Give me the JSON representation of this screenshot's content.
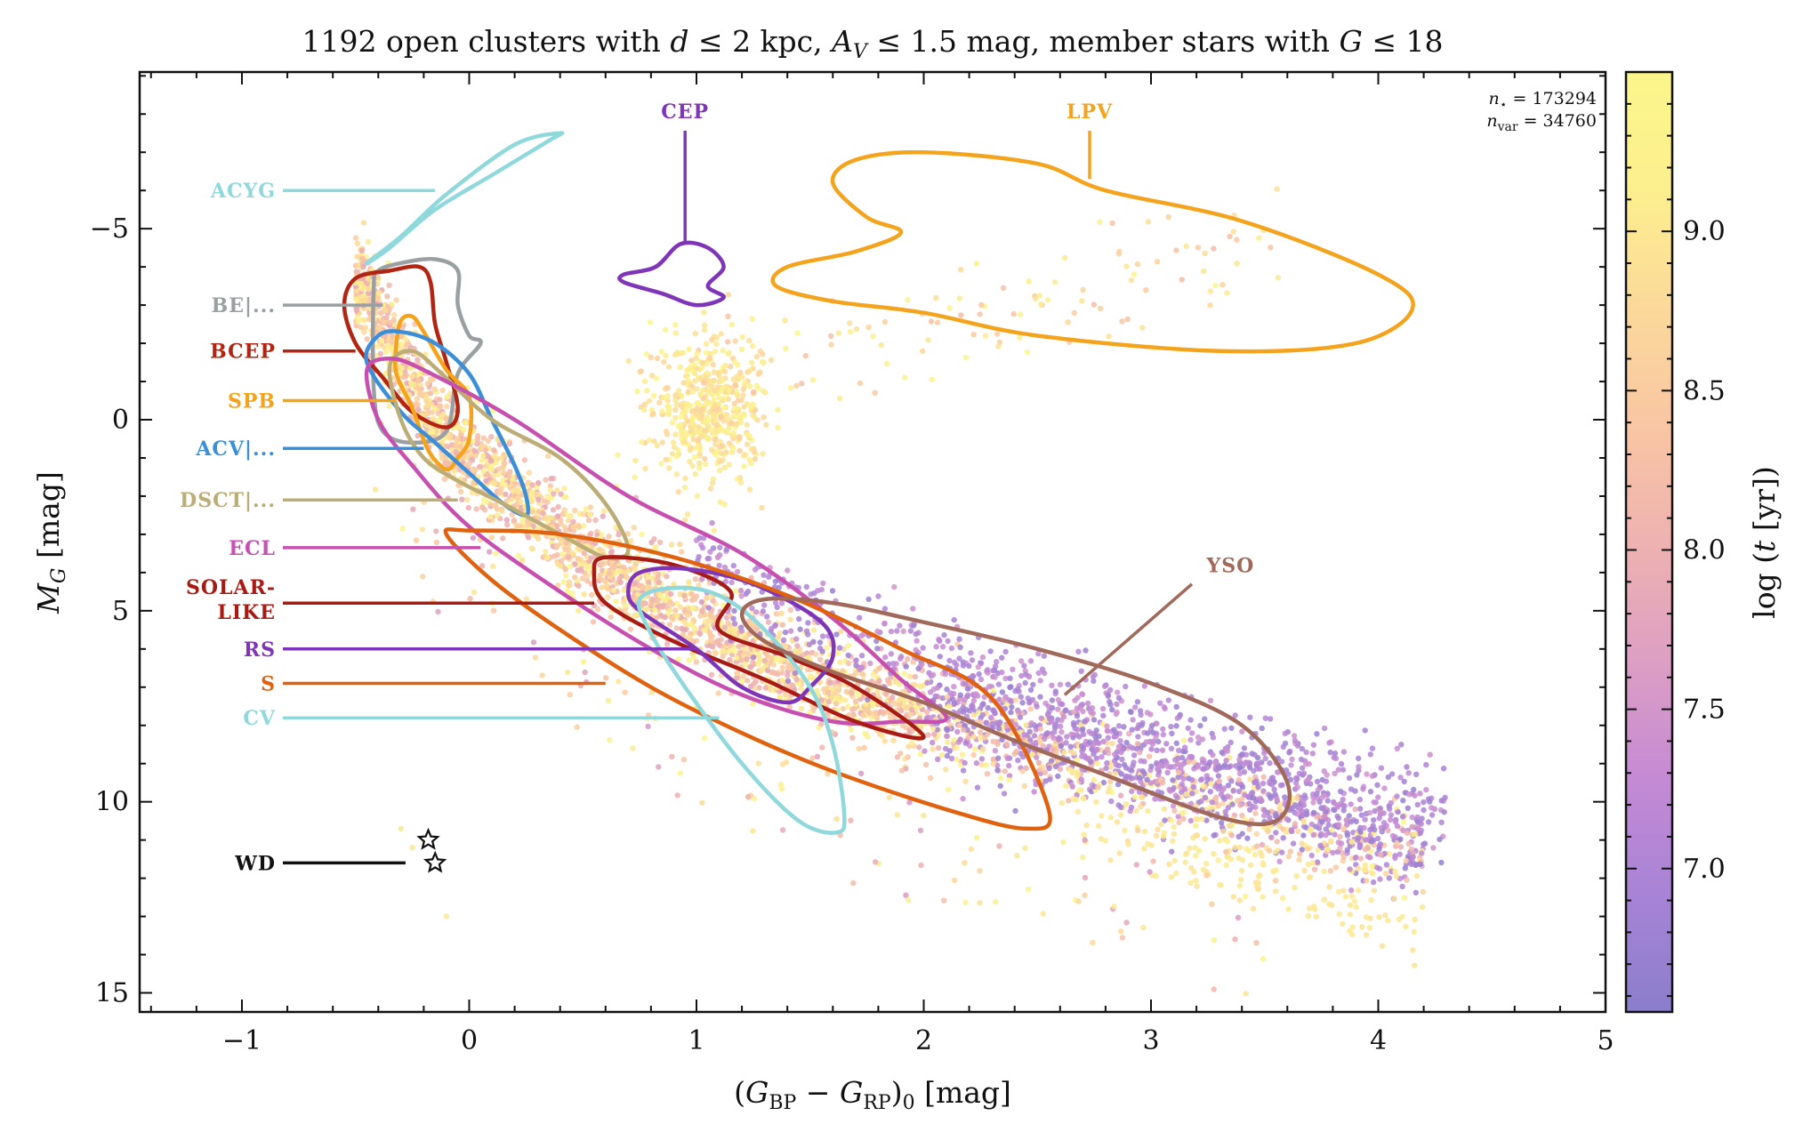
{
  "chart_data": {
    "type": "scatter",
    "title": "1192 open clusters with d ≤ 2 kpc, A_V ≤ 1.5 mag, member stars with G ≤ 18",
    "title_parts": {
      "lead": "1192 open clusters with ",
      "d_sym": "d",
      "d_rest": " ≤ 2 kpc, ",
      "av_sym": "A",
      "av_sub": "V",
      "av_rest": " ≤ 1.5 mag, member stars with ",
      "g_sym": "G",
      "g_rest": " ≤ 18"
    },
    "xlabel": "(G_BP − G_RP)_0 [mag]",
    "xlabel_parts": {
      "open": "(",
      "g1": "G",
      "s1": "BP",
      "minus": " − ",
      "g2": "G",
      "s2": "RP",
      "close": ")",
      "s3": "0",
      "unit": " [mag]"
    },
    "ylabel": "M_G [mag]",
    "ylabel_parts": {
      "m": "M",
      "s": "G",
      "unit": " [mag]"
    },
    "xlim": [
      -1.45,
      5.0
    ],
    "ylim": [
      15.5,
      -9.1
    ],
    "y_inverted": true,
    "xticks": [
      "−1",
      "0",
      "1",
      "2",
      "3",
      "4",
      "5"
    ],
    "xtick_values": [
      -1,
      0,
      1,
      2,
      3,
      4,
      5
    ],
    "yticks": [
      "−5",
      "0",
      "5",
      "10",
      "15"
    ],
    "ytick_values": [
      -5,
      0,
      5,
      10,
      15
    ],
    "colorbar": {
      "label": "log (t [yr])",
      "label_parts": {
        "log": "log",
        "open": " (",
        "t": "t",
        "rest": " [yr])"
      },
      "range": [
        6.55,
        9.5
      ],
      "ticks": [
        "7.0",
        "7.5",
        "8.0",
        "8.5",
        "9.0"
      ],
      "tick_values": [
        7.0,
        7.5,
        8.0,
        8.5,
        9.0
      ],
      "colors": [
        "#8a7ecb",
        "#a883d6",
        "#c58ad4",
        "#dd9fc3",
        "#eeb2b0",
        "#f9c6a3",
        "#fbd99a",
        "#fcef8e",
        "#fbf68b"
      ]
    },
    "counts": {
      "n_star": "n⋆ = 173294",
      "n_var": "nvar = 34760",
      "n_star_parts": {
        "n": "n",
        "sub": "⋆",
        "eq": " = 173294"
      },
      "n_var_parts": {
        "n": "n",
        "sub": "var",
        "eq": " = 34760"
      }
    },
    "sequences": {
      "main_sequence": [
        [
          -0.45,
          -3.5
        ],
        [
          -0.3,
          -1.5
        ],
        [
          -0.1,
          0.5
        ],
        [
          0.2,
          2.0
        ],
        [
          0.5,
          3.5
        ],
        [
          0.8,
          4.6
        ],
        [
          1.1,
          5.6
        ],
        [
          1.4,
          6.5
        ],
        [
          1.7,
          7.2
        ],
        [
          2.0,
          7.8
        ],
        [
          2.3,
          8.3
        ],
        [
          2.6,
          8.8
        ],
        [
          2.9,
          9.3
        ],
        [
          3.2,
          9.8
        ],
        [
          3.5,
          10.3
        ],
        [
          3.8,
          10.9
        ],
        [
          4.1,
          11.5
        ]
      ],
      "red_clump": [
        [
          0.95,
          -0.1
        ],
        [
          1.05,
          -0.5
        ],
        [
          1.15,
          0.3
        ],
        [
          1.2,
          -1.2
        ],
        [
          1.0,
          -2.0
        ]
      ],
      "giant_branch": [
        [
          1.1,
          -1.0
        ],
        [
          1.5,
          -2.5
        ],
        [
          2.0,
          -3.5
        ],
        [
          2.6,
          -4.5
        ],
        [
          3.3,
          -5.0
        ]
      ],
      "white_dwarfs": [
        [
          -0.2,
          11.0
        ],
        [
          -0.15,
          11.7
        ],
        [
          -0.3,
          10.7
        ],
        [
          -0.25,
          11.2
        ],
        [
          -0.1,
          13.0
        ]
      ]
    },
    "series": [
      {
        "name": "ACYG",
        "color": "#8fd9dc",
        "contour": [
          [
            -0.45,
            -4.1
          ],
          [
            -0.3,
            -4.8
          ],
          [
            -0.1,
            -5.9
          ],
          [
            0.2,
            -7.2
          ],
          [
            0.4,
            -7.5
          ],
          [
            0.35,
            -7.3
          ],
          [
            0.1,
            -6.4
          ],
          [
            -0.15,
            -5.5
          ],
          [
            -0.35,
            -4.5
          ],
          [
            -0.45,
            -4.1
          ]
        ],
        "anchor": [
          -0.15,
          -6.0
        ]
      },
      {
        "name": "BE|...",
        "color": "#9aa0a2",
        "contour": [
          [
            -0.42,
            -3.5
          ],
          [
            -0.4,
            -3.9
          ],
          [
            -0.3,
            -4.1
          ],
          [
            -0.15,
            -4.2
          ],
          [
            -0.05,
            -3.9
          ],
          [
            -0.05,
            -3.0
          ],
          [
            0.0,
            -2.2
          ],
          [
            0.05,
            -2.0
          ],
          [
            -0.05,
            -1.2
          ],
          [
            -0.1,
            0.3
          ],
          [
            -0.25,
            0.6
          ],
          [
            -0.38,
            0.3
          ],
          [
            -0.42,
            -0.8
          ],
          [
            -0.42,
            -3.5
          ]
        ],
        "anchor": [
          -0.38,
          -3.0
        ]
      },
      {
        "name": "BCEP",
        "color": "#b22512",
        "contour": [
          [
            -0.55,
            -3.0
          ],
          [
            -0.5,
            -3.7
          ],
          [
            -0.35,
            -3.9
          ],
          [
            -0.22,
            -4.0
          ],
          [
            -0.17,
            -3.6
          ],
          [
            -0.15,
            -2.5
          ],
          [
            -0.1,
            -1.5
          ],
          [
            -0.05,
            -0.3
          ],
          [
            -0.1,
            0.2
          ],
          [
            -0.25,
            -0.2
          ],
          [
            -0.38,
            -1.1
          ],
          [
            -0.5,
            -2.0
          ],
          [
            -0.55,
            -3.0
          ]
        ],
        "anchor": [
          -0.5,
          -1.8
        ]
      },
      {
        "name": "SPB",
        "color": "#f4a31c",
        "contour": [
          [
            -0.32,
            -2.0
          ],
          [
            -0.3,
            -2.6
          ],
          [
            -0.25,
            -2.7
          ],
          [
            -0.2,
            -2.3
          ],
          [
            -0.1,
            -1.3
          ],
          [
            0.0,
            -0.6
          ],
          [
            0.0,
            0.5
          ],
          [
            -0.05,
            1.0
          ],
          [
            -0.1,
            1.3
          ],
          [
            -0.18,
            0.8
          ],
          [
            -0.25,
            -0.3
          ],
          [
            -0.32,
            -1.2
          ],
          [
            -0.32,
            -2.0
          ]
        ],
        "anchor": [
          -0.32,
          -0.5
        ]
      },
      {
        "name": "ACV|...",
        "color": "#3a8fd8",
        "contour": [
          [
            -0.45,
            -1.5
          ],
          [
            -0.4,
            -2.2
          ],
          [
            -0.3,
            -2.3
          ],
          [
            -0.15,
            -2.0
          ],
          [
            0.0,
            -1.2
          ],
          [
            0.1,
            0.0
          ],
          [
            0.2,
            1.2
          ],
          [
            0.25,
            2.0
          ],
          [
            0.25,
            2.5
          ],
          [
            0.15,
            2.2
          ],
          [
            0.0,
            1.4
          ],
          [
            -0.15,
            0.6
          ],
          [
            -0.3,
            -0.2
          ],
          [
            -0.45,
            -1.5
          ]
        ],
        "anchor": [
          -0.2,
          0.7
        ]
      },
      {
        "name": "DSCT|...",
        "color": "#bcac75",
        "contour": [
          [
            -0.35,
            -1.4
          ],
          [
            -0.25,
            -1.8
          ],
          [
            -0.12,
            -1.2
          ],
          [
            0.1,
            0.0
          ],
          [
            0.4,
            1.0
          ],
          [
            0.6,
            2.2
          ],
          [
            0.7,
            3.4
          ],
          [
            0.6,
            3.6
          ],
          [
            0.4,
            3.0
          ],
          [
            0.15,
            2.2
          ],
          [
            -0.05,
            1.6
          ],
          [
            -0.2,
            1.0
          ],
          [
            -0.3,
            0.0
          ],
          [
            -0.35,
            -1.4
          ]
        ],
        "anchor": [
          -0.05,
          2.1
        ]
      },
      {
        "name": "ECL",
        "color": "#c74fb0",
        "contour": [
          [
            -0.45,
            -1.3
          ],
          [
            -0.35,
            -1.6
          ],
          [
            -0.2,
            -1.3
          ],
          [
            0.2,
            0.0
          ],
          [
            0.7,
            2.0
          ],
          [
            1.2,
            3.5
          ],
          [
            1.6,
            5.2
          ],
          [
            1.9,
            6.8
          ],
          [
            2.1,
            7.8
          ],
          [
            1.9,
            7.9
          ],
          [
            1.6,
            7.9
          ],
          [
            1.2,
            7.2
          ],
          [
            0.8,
            6.0
          ],
          [
            0.4,
            4.5
          ],
          [
            0.0,
            2.8
          ],
          [
            -0.25,
            1.2
          ],
          [
            -0.4,
            0.0
          ],
          [
            -0.45,
            -1.3
          ]
        ],
        "anchor": [
          0.05,
          3.3
        ]
      },
      {
        "name": "SOLAR-LIKE",
        "name_lines": [
          "SOLAR-",
          "LIKE"
        ],
        "color": "#a71b14",
        "contour": [
          [
            0.55,
            4.0
          ],
          [
            0.6,
            3.6
          ],
          [
            0.9,
            3.8
          ],
          [
            1.15,
            4.5
          ],
          [
            1.1,
            5.5
          ],
          [
            1.4,
            6.2
          ],
          [
            1.7,
            7.0
          ],
          [
            2.0,
            8.3
          ],
          [
            1.7,
            7.9
          ],
          [
            1.3,
            6.8
          ],
          [
            0.9,
            5.8
          ],
          [
            0.6,
            4.8
          ],
          [
            0.55,
            4.0
          ]
        ],
        "anchor": [
          0.55,
          4.8
        ]
      },
      {
        "name": "RS",
        "color": "#7e35b8",
        "contour": [
          [
            0.7,
            4.5
          ],
          [
            0.75,
            4.0
          ],
          [
            0.95,
            3.9
          ],
          [
            1.25,
            4.3
          ],
          [
            1.55,
            5.3
          ],
          [
            1.6,
            6.2
          ],
          [
            1.5,
            7.0
          ],
          [
            1.4,
            7.4
          ],
          [
            1.2,
            7.0
          ],
          [
            1.0,
            6.0
          ],
          [
            0.75,
            5.0
          ],
          [
            0.7,
            4.5
          ]
        ],
        "anchor": [
          1.0,
          6.0
        ]
      },
      {
        "name": "S",
        "color": "#e0620e",
        "contour": [
          [
            -0.1,
            3.0
          ],
          [
            0.0,
            2.9
          ],
          [
            0.4,
            3.0
          ],
          [
            0.9,
            3.6
          ],
          [
            1.4,
            4.6
          ],
          [
            1.9,
            6.0
          ],
          [
            2.3,
            7.3
          ],
          [
            2.55,
            10.2
          ],
          [
            2.45,
            10.7
          ],
          [
            2.1,
            10.2
          ],
          [
            1.6,
            9.2
          ],
          [
            1.2,
            8.2
          ],
          [
            0.8,
            7.0
          ],
          [
            0.4,
            5.5
          ],
          [
            0.1,
            4.2
          ],
          [
            -0.1,
            3.0
          ]
        ],
        "anchor": [
          0.6,
          6.9
        ]
      },
      {
        "name": "CV",
        "color": "#8fd9dc",
        "contour": [
          [
            0.75,
            4.7
          ],
          [
            0.9,
            4.4
          ],
          [
            1.1,
            4.6
          ],
          [
            1.3,
            5.5
          ],
          [
            1.5,
            7.0
          ],
          [
            1.6,
            8.5
          ],
          [
            1.65,
            10.3
          ],
          [
            1.62,
            10.8
          ],
          [
            1.45,
            10.5
          ],
          [
            1.2,
            9.0
          ],
          [
            0.95,
            7.0
          ],
          [
            0.8,
            5.6
          ],
          [
            0.75,
            4.7
          ]
        ],
        "anchor": [
          1.1,
          7.8
        ]
      },
      {
        "name": "YSO",
        "color": "#a0695a",
        "contour": [
          [
            1.2,
            5.1
          ],
          [
            1.3,
            4.7
          ],
          [
            1.6,
            4.8
          ],
          [
            2.0,
            5.3
          ],
          [
            2.5,
            6.0
          ],
          [
            3.0,
            6.9
          ],
          [
            3.4,
            8.0
          ],
          [
            3.6,
            9.5
          ],
          [
            3.55,
            10.5
          ],
          [
            3.3,
            10.4
          ],
          [
            2.8,
            9.3
          ],
          [
            2.4,
            8.4
          ],
          [
            2.0,
            7.4
          ],
          [
            1.6,
            6.6
          ],
          [
            1.3,
            5.8
          ],
          [
            1.2,
            5.1
          ]
        ],
        "anchor": [
          2.62,
          7.2
        ]
      },
      {
        "name": "CEP",
        "color": "#7e35b8",
        "contour": [
          [
            0.68,
            -3.8
          ],
          [
            0.82,
            -4.0
          ],
          [
            0.93,
            -4.6
          ],
          [
            1.05,
            -4.5
          ],
          [
            1.12,
            -4.0
          ],
          [
            1.05,
            -3.5
          ],
          [
            1.12,
            -3.2
          ],
          [
            1.0,
            -3.0
          ],
          [
            0.85,
            -3.3
          ],
          [
            0.68,
            -3.6
          ],
          [
            0.68,
            -3.8
          ]
        ],
        "anchor": [
          0.95,
          -4.6
        ]
      },
      {
        "name": "LPV",
        "color": "#f4a31c",
        "contour": [
          [
            1.6,
            -6.2
          ],
          [
            1.7,
            -6.8
          ],
          [
            2.0,
            -7.0
          ],
          [
            2.5,
            -6.7
          ],
          [
            2.8,
            -6.0
          ],
          [
            3.4,
            -5.2
          ],
          [
            4.0,
            -3.8
          ],
          [
            4.15,
            -2.9
          ],
          [
            3.9,
            -2.0
          ],
          [
            3.3,
            -1.8
          ],
          [
            2.5,
            -2.2
          ],
          [
            2.0,
            -2.8
          ],
          [
            1.6,
            -3.1
          ],
          [
            1.35,
            -3.5
          ],
          [
            1.4,
            -4.0
          ],
          [
            1.7,
            -4.4
          ],
          [
            1.9,
            -4.9
          ],
          [
            1.75,
            -5.3
          ],
          [
            1.6,
            -6.2
          ]
        ],
        "anchor": [
          2.73,
          -6.3
        ]
      },
      {
        "name": "WD",
        "color": "#111111",
        "stars": [
          [
            -0.18,
            11.0
          ],
          [
            -0.15,
            11.6
          ]
        ],
        "anchor": [
          -0.28,
          11.6
        ]
      }
    ]
  }
}
